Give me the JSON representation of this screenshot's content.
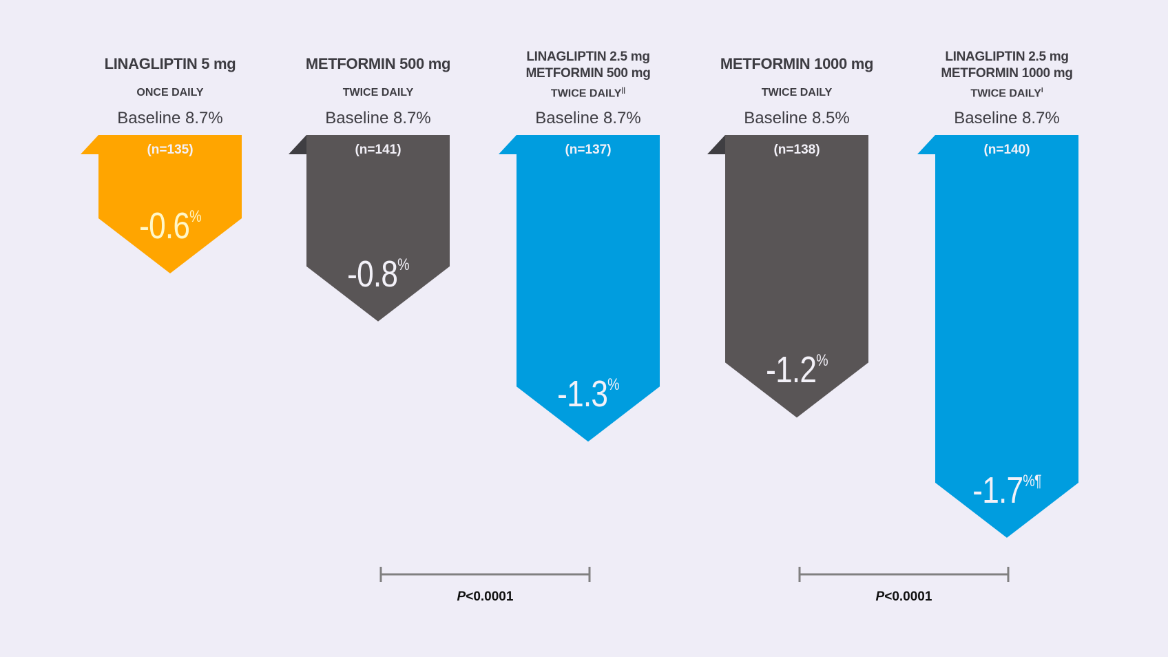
{
  "chart_data": {
    "type": "bar",
    "orientation": "downward-arrows",
    "categories": [
      "LINAGLIPTIN 5 mg",
      "METFORMIN 500 mg",
      "LINAGLIPTIN 2.5 mg METFORMIN 500 mg",
      "METFORMIN 1000 mg",
      "LINAGLIPTIN 2.5 mg METFORMIN 1000 mg"
    ],
    "values": [
      -0.6,
      -0.8,
      -1.3,
      -1.2,
      -1.7
    ],
    "arms": [
      {
        "title_lines": [
          "LINAGLIPTIN 5 mg"
        ],
        "dosing": "ONCE DAILY",
        "dosing_mark": "",
        "baseline": "Baseline 8.7%",
        "n": "(n=135)",
        "value_label": "-0.6",
        "unit": "%",
        "footnote": "",
        "color": "#ffa500",
        "tab_color": "#ffa500"
      },
      {
        "title_lines": [
          "METFORMIN 500 mg"
        ],
        "dosing": "TWICE DAILY",
        "dosing_mark": "",
        "baseline": "Baseline 8.7%",
        "n": "(n=141)",
        "value_label": "-0.8",
        "unit": "%",
        "footnote": "",
        "color": "#595556",
        "tab_color": "#3f3e42"
      },
      {
        "title_lines": [
          "LINAGLIPTIN 2.5 mg",
          "METFORMIN 500 mg"
        ],
        "dosing": "TWICE DAILY",
        "dosing_mark": "||",
        "baseline": "Baseline 8.7%",
        "n": "(n=137)",
        "value_label": "-1.3",
        "unit": "%",
        "footnote": "",
        "color": "#009ddf",
        "tab_color": "#009ddf"
      },
      {
        "title_lines": [
          "METFORMIN 1000 mg"
        ],
        "dosing": "TWICE DAILY",
        "dosing_mark": "",
        "baseline": "Baseline 8.5%",
        "n": "(n=138)",
        "value_label": "-1.2",
        "unit": "%",
        "footnote": "",
        "color": "#595556",
        "tab_color": "#3f3e42"
      },
      {
        "title_lines": [
          "LINAGLIPTIN 2.5 mg",
          "METFORMIN 1000 mg"
        ],
        "dosing": "TWICE DAILY",
        "dosing_mark": "I",
        "baseline": "Baseline 8.7%",
        "n": "(n=140)",
        "value_label": "-1.7",
        "unit": "%",
        "footnote": "¶",
        "color": "#009ddf",
        "tab_color": "#009ddf"
      }
    ],
    "comparisons": [
      {
        "from": 1,
        "to": 2,
        "p_prefix": "P",
        "p_text": "<0.0001"
      },
      {
        "from": 3,
        "to": 4,
        "p_prefix": "P",
        "p_text": "<0.0001"
      }
    ],
    "bracket_color": "#808080",
    "background": "#efedf7"
  }
}
